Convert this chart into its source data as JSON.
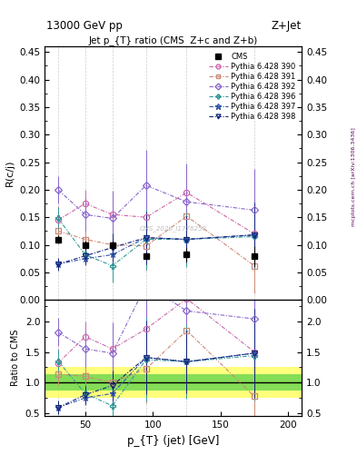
{
  "title_top": "13000 GeV pp",
  "title_right": "Z+Jet",
  "plot_title": "Jet p_{T} ratio (CMS  Z+c and Z+b)",
  "ylabel_main": "R(c/j)",
  "ylabel_ratio": "Ratio to CMS",
  "xlabel": "p_{T} (jet) [GeV]",
  "right_label": "mcplots.cern.ch [arXiv:1306.3436]",
  "watermark": "CMS_2020_I1776258",
  "cms_x": [
    30,
    50,
    70,
    95,
    125,
    175
  ],
  "cms_y": [
    0.11,
    0.1,
    0.1,
    0.08,
    0.082,
    0.08
  ],
  "cms_yerr": [
    0.008,
    0.008,
    0.008,
    0.006,
    0.012,
    0.018
  ],
  "py390_x": [
    30,
    50,
    70,
    95,
    125,
    175
  ],
  "py390_y": [
    0.145,
    0.175,
    0.155,
    0.15,
    0.195,
    0.12
  ],
  "py390_yerr": [
    0.025,
    0.025,
    0.03,
    0.06,
    0.045,
    0.06
  ],
  "py390_color": "#cc66aa",
  "py390_marker": "o",
  "py391_x": [
    30,
    50,
    70,
    95,
    125,
    175
  ],
  "py391_y": [
    0.125,
    0.11,
    0.1,
    0.098,
    0.152,
    0.062
  ],
  "py391_yerr": [
    0.02,
    0.018,
    0.018,
    0.045,
    0.045,
    0.05
  ],
  "py391_color": "#cc8877",
  "py391_marker": "s",
  "py392_x": [
    30,
    50,
    70,
    95,
    125,
    175
  ],
  "py392_y": [
    0.2,
    0.155,
    0.148,
    0.208,
    0.178,
    0.163
  ],
  "py392_yerr": [
    0.025,
    0.03,
    0.05,
    0.065,
    0.07,
    0.075
  ],
  "py392_color": "#8866cc",
  "py392_marker": "D",
  "py396_x": [
    30,
    50,
    70,
    95,
    125,
    175
  ],
  "py396_y": [
    0.148,
    0.082,
    0.062,
    0.11,
    0.11,
    0.115
  ],
  "py396_yerr": [
    0.02,
    0.015,
    0.03,
    0.055,
    0.05,
    0.058
  ],
  "py396_color": "#339999",
  "py396_marker": "P",
  "py397_x": [
    30,
    50,
    70,
    95,
    125,
    175
  ],
  "py397_y": [
    0.065,
    0.075,
    0.082,
    0.113,
    0.11,
    0.118
  ],
  "py397_yerr": [
    0.01,
    0.012,
    0.018,
    0.048,
    0.042,
    0.058
  ],
  "py397_color": "#3355aa",
  "py397_marker": "*",
  "py398_x": [
    30,
    50,
    70,
    95,
    125,
    175
  ],
  "py398_y": [
    0.065,
    0.08,
    0.095,
    0.113,
    0.11,
    0.118
  ],
  "py398_yerr": [
    0.012,
    0.015,
    0.025,
    0.048,
    0.042,
    0.058
  ],
  "py398_color": "#112277",
  "py398_marker": "v",
  "ylim_main": [
    0.0,
    0.46
  ],
  "ylim_ratio": [
    0.45,
    2.35
  ],
  "vlines_x": [
    30,
    50,
    70,
    95,
    125,
    175
  ],
  "green_band": [
    0.87,
    1.13
  ],
  "yellow_band": [
    0.75,
    1.25
  ],
  "ratio390": [
    1.32,
    1.75,
    1.55,
    1.875,
    2.37,
    1.5
  ],
  "ratio391": [
    1.14,
    1.1,
    1.0,
    1.225,
    1.85,
    0.775
  ],
  "ratio392": [
    1.82,
    1.55,
    1.48,
    2.6,
    2.17,
    2.04
  ],
  "ratio396": [
    1.35,
    0.82,
    0.62,
    1.375,
    1.34,
    1.44
  ],
  "ratio397": [
    0.59,
    0.75,
    0.82,
    1.41,
    1.34,
    1.48
  ],
  "ratio398": [
    0.59,
    0.8,
    0.95,
    1.41,
    1.34,
    1.48
  ],
  "ratio390_err": [
    0.23,
    0.25,
    0.3,
    0.75,
    0.55,
    0.75
  ],
  "ratio391_err": [
    0.18,
    0.18,
    0.18,
    0.56,
    0.55,
    0.63
  ],
  "ratio392_err": [
    0.23,
    0.3,
    0.5,
    0.81,
    0.85,
    0.94
  ],
  "ratio396_err": [
    0.18,
    0.15,
    0.3,
    0.69,
    0.61,
    0.73
  ],
  "ratio397_err": [
    0.09,
    0.12,
    0.18,
    0.6,
    0.51,
    0.73
  ],
  "ratio398_err": [
    0.11,
    0.15,
    0.25,
    0.6,
    0.51,
    0.73
  ]
}
